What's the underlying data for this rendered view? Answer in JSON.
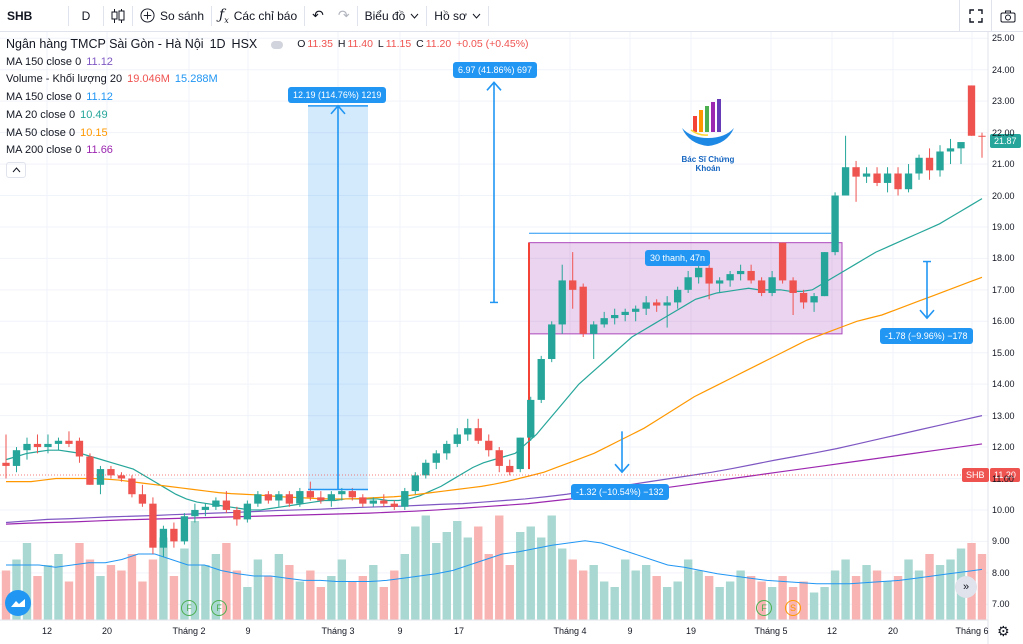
{
  "toolbar": {
    "symbol": "SHB",
    "interval": "D",
    "compare_label": "So sánh",
    "indicators_label": "Các chỉ báo",
    "chart_type_label": "Biểu đồ",
    "profile_label": "Hồ sơ"
  },
  "legend": {
    "title": "Ngân hàng TMCP Sài Gòn - Hà Nội",
    "timeframe": "1D",
    "exchange": "HSX",
    "ohlc": {
      "o_label": "O",
      "o": "11.35",
      "h_label": "H",
      "h": "11.40",
      "l_label": "L",
      "l": "11.15",
      "c_label": "C",
      "c": "11.20",
      "change": "+0.05 (+0.45%)"
    },
    "rows": [
      {
        "name": "MA 150 close 0",
        "value": "11.12",
        "color": "#7e57c2"
      },
      {
        "name": "Volume - Khối lượng 20",
        "value": "19.046M",
        "value2": "15.288M",
        "color": "#ef5350",
        "color2": "#2196f3"
      },
      {
        "name": "MA 150 close 0",
        "value": "11.12",
        "color": "#2196f3"
      },
      {
        "name": "MA 20 close 0",
        "value": "10.49",
        "color": "#26a69a"
      },
      {
        "name": "MA 50 close 0",
        "value": "10.15",
        "color": "#ff9800"
      },
      {
        "name": "MA 200 close 0",
        "value": "11.66",
        "color": "#9c27b0"
      }
    ]
  },
  "annotations": {
    "range1": "12.19 (114.76%) 1219",
    "range2": "6.97 (41.86%) 697",
    "range3": "30 thanh, 47n",
    "range4": "-1.78 (−9.96%) −178",
    "range5": "-1.32 (−10.54%) −132",
    "logo_text": "Bác Sĩ Chứng Khoán"
  },
  "price_tags": {
    "current": "21.87",
    "shb_label": "SHB",
    "shb_price": "11.20"
  },
  "event_markers": [
    "F",
    "F",
    "F",
    "S"
  ],
  "colors": {
    "up": "#26a69a",
    "down": "#ef5350",
    "ma20": "#26a69a",
    "ma50": "#ff9800",
    "ma150": "#7e57c2",
    "ma200": "#9c27b0"
  },
  "chart_data": {
    "type": "candlestick",
    "y_axis": {
      "min": 6.5,
      "max": 25.2,
      "ticks": [
        "25.00",
        "24.00",
        "23.00",
        "22.00",
        "21.00",
        "20.00",
        "19.00",
        "18.00",
        "17.00",
        "16.00",
        "15.00",
        "14.00",
        "13.00",
        "12.00",
        "11.00",
        "10.00",
        "9.00",
        "8.00",
        "7.00"
      ]
    },
    "x_ticks": [
      "12",
      "20",
      "Tháng 2",
      "9",
      "Tháng 3",
      "9",
      "17",
      "Tháng 4",
      "9",
      "19",
      "Tháng 5",
      "12",
      "20",
      "Tháng 6"
    ],
    "candles": [
      {
        "o": 11.5,
        "h": 12.4,
        "l": 11.0,
        "c": 11.4
      },
      {
        "o": 11.4,
        "h": 12.0,
        "l": 11.2,
        "c": 11.9
      },
      {
        "o": 11.9,
        "h": 12.3,
        "l": 11.6,
        "c": 12.1
      },
      {
        "o": 12.1,
        "h": 12.4,
        "l": 11.8,
        "c": 12.0
      },
      {
        "o": 12.0,
        "h": 12.4,
        "l": 11.8,
        "c": 12.1
      },
      {
        "o": 12.1,
        "h": 12.3,
        "l": 11.9,
        "c": 12.2
      },
      {
        "o": 12.2,
        "h": 12.5,
        "l": 12.0,
        "c": 12.1
      },
      {
        "o": 12.2,
        "h": 12.3,
        "l": 11.5,
        "c": 11.7
      },
      {
        "o": 11.7,
        "h": 11.8,
        "l": 10.8,
        "c": 10.8
      },
      {
        "o": 10.8,
        "h": 11.4,
        "l": 10.5,
        "c": 11.3
      },
      {
        "o": 11.3,
        "h": 11.4,
        "l": 11.0,
        "c": 11.1
      },
      {
        "o": 11.1,
        "h": 11.2,
        "l": 10.9,
        "c": 11.0
      },
      {
        "o": 11.0,
        "h": 11.1,
        "l": 10.4,
        "c": 10.5
      },
      {
        "o": 10.5,
        "h": 10.8,
        "l": 10.1,
        "c": 10.2
      },
      {
        "o": 10.2,
        "h": 10.4,
        "l": 8.6,
        "c": 8.8
      },
      {
        "o": 8.8,
        "h": 9.5,
        "l": 8.5,
        "c": 9.4
      },
      {
        "o": 9.4,
        "h": 9.6,
        "l": 8.8,
        "c": 9.0
      },
      {
        "o": 9.0,
        "h": 9.9,
        "l": 8.9,
        "c": 9.8
      },
      {
        "o": 9.8,
        "h": 10.2,
        "l": 9.6,
        "c": 10.0
      },
      {
        "o": 10.0,
        "h": 10.2,
        "l": 9.8,
        "c": 10.1
      },
      {
        "o": 10.1,
        "h": 10.4,
        "l": 10.0,
        "c": 10.3
      },
      {
        "o": 10.3,
        "h": 10.6,
        "l": 9.9,
        "c": 10.0
      },
      {
        "o": 10.0,
        "h": 10.1,
        "l": 9.5,
        "c": 9.7
      },
      {
        "o": 9.7,
        "h": 10.3,
        "l": 9.6,
        "c": 10.2
      },
      {
        "o": 10.2,
        "h": 10.6,
        "l": 10.1,
        "c": 10.5
      },
      {
        "o": 10.5,
        "h": 10.6,
        "l": 10.2,
        "c": 10.3
      },
      {
        "o": 10.3,
        "h": 10.6,
        "l": 10.1,
        "c": 10.5
      },
      {
        "o": 10.5,
        "h": 10.6,
        "l": 10.1,
        "c": 10.2
      },
      {
        "o": 10.2,
        "h": 10.7,
        "l": 10.1,
        "c": 10.6
      },
      {
        "o": 10.6,
        "h": 10.9,
        "l": 10.3,
        "c": 10.4
      },
      {
        "o": 10.4,
        "h": 10.6,
        "l": 10.2,
        "c": 10.3
      },
      {
        "o": 10.3,
        "h": 10.6,
        "l": 10.1,
        "c": 10.5
      },
      {
        "o": 10.5,
        "h": 10.7,
        "l": 10.3,
        "c": 10.6
      },
      {
        "o": 10.6,
        "h": 10.7,
        "l": 10.3,
        "c": 10.4
      },
      {
        "o": 10.4,
        "h": 10.5,
        "l": 10.1,
        "c": 10.2
      },
      {
        "o": 10.2,
        "h": 10.4,
        "l": 10.1,
        "c": 10.3
      },
      {
        "o": 10.3,
        "h": 10.5,
        "l": 10.1,
        "c": 10.2
      },
      {
        "o": 10.2,
        "h": 10.3,
        "l": 10.0,
        "c": 10.1
      },
      {
        "o": 10.1,
        "h": 10.7,
        "l": 10.0,
        "c": 10.6
      },
      {
        "o": 10.6,
        "h": 11.2,
        "l": 10.5,
        "c": 11.1
      },
      {
        "o": 11.1,
        "h": 11.6,
        "l": 11.0,
        "c": 11.5
      },
      {
        "o": 11.5,
        "h": 11.9,
        "l": 11.3,
        "c": 11.8
      },
      {
        "o": 11.8,
        "h": 12.2,
        "l": 11.6,
        "c": 12.1
      },
      {
        "o": 12.1,
        "h": 12.6,
        "l": 12.0,
        "c": 12.4
      },
      {
        "o": 12.4,
        "h": 12.9,
        "l": 12.2,
        "c": 12.6
      },
      {
        "o": 12.6,
        "h": 12.9,
        "l": 12.1,
        "c": 12.2
      },
      {
        "o": 12.2,
        "h": 12.4,
        "l": 11.7,
        "c": 11.9
      },
      {
        "o": 11.9,
        "h": 12.0,
        "l": 11.2,
        "c": 11.4
      },
      {
        "o": 11.4,
        "h": 11.6,
        "l": 11.1,
        "c": 11.2
      },
      {
        "o": 11.3,
        "h": 12.3,
        "l": 11.2,
        "c": 12.3
      },
      {
        "o": 12.3,
        "h": 13.6,
        "l": 12.2,
        "c": 13.5
      },
      {
        "o": 13.5,
        "h": 14.9,
        "l": 13.4,
        "c": 14.8
      },
      {
        "o": 14.8,
        "h": 16.0,
        "l": 14.7,
        "c": 15.9
      },
      {
        "o": 15.9,
        "h": 17.8,
        "l": 15.6,
        "c": 17.3
      },
      {
        "o": 17.3,
        "h": 18.2,
        "l": 16.4,
        "c": 17.0
      },
      {
        "o": 17.1,
        "h": 17.2,
        "l": 15.5,
        "c": 15.6
      },
      {
        "o": 15.6,
        "h": 16.0,
        "l": 14.8,
        "c": 15.9
      },
      {
        "o": 15.9,
        "h": 16.3,
        "l": 15.8,
        "c": 16.1
      },
      {
        "o": 16.1,
        "h": 16.4,
        "l": 15.9,
        "c": 16.2
      },
      {
        "o": 16.2,
        "h": 16.4,
        "l": 16.0,
        "c": 16.3
      },
      {
        "o": 16.3,
        "h": 16.5,
        "l": 16.0,
        "c": 16.4
      },
      {
        "o": 16.4,
        "h": 16.8,
        "l": 16.2,
        "c": 16.6
      },
      {
        "o": 16.6,
        "h": 16.7,
        "l": 16.3,
        "c": 16.5
      },
      {
        "o": 16.5,
        "h": 16.8,
        "l": 15.8,
        "c": 16.6
      },
      {
        "o": 16.6,
        "h": 17.1,
        "l": 16.4,
        "c": 17.0
      },
      {
        "o": 17.0,
        "h": 17.6,
        "l": 16.9,
        "c": 17.4
      },
      {
        "o": 17.4,
        "h": 17.9,
        "l": 17.2,
        "c": 17.7
      },
      {
        "o": 17.7,
        "h": 17.8,
        "l": 16.7,
        "c": 17.2
      },
      {
        "o": 17.2,
        "h": 17.4,
        "l": 16.9,
        "c": 17.3
      },
      {
        "o": 17.3,
        "h": 17.6,
        "l": 17.1,
        "c": 17.5
      },
      {
        "o": 17.5,
        "h": 17.8,
        "l": 17.3,
        "c": 17.6
      },
      {
        "o": 17.6,
        "h": 17.8,
        "l": 17.2,
        "c": 17.3
      },
      {
        "o": 17.3,
        "h": 17.4,
        "l": 16.8,
        "c": 16.9
      },
      {
        "o": 16.9,
        "h": 17.6,
        "l": 16.8,
        "c": 17.4
      },
      {
        "o": 18.5,
        "h": 18.5,
        "l": 17.2,
        "c": 17.3
      },
      {
        "o": 17.3,
        "h": 17.4,
        "l": 16.2,
        "c": 16.9
      },
      {
        "o": 16.9,
        "h": 17.0,
        "l": 16.4,
        "c": 16.6
      },
      {
        "o": 16.6,
        "h": 16.9,
        "l": 16.3,
        "c": 16.8
      },
      {
        "o": 16.8,
        "h": 18.2,
        "l": 16.8,
        "c": 18.2
      },
      {
        "o": 18.2,
        "h": 20.1,
        "l": 18.1,
        "c": 20.0
      },
      {
        "o": 20.0,
        "h": 21.9,
        "l": 20.0,
        "c": 20.9
      },
      {
        "o": 20.9,
        "h": 21.1,
        "l": 19.8,
        "c": 20.6
      },
      {
        "o": 20.6,
        "h": 20.9,
        "l": 20.4,
        "c": 20.7
      },
      {
        "o": 20.7,
        "h": 20.9,
        "l": 20.3,
        "c": 20.4
      },
      {
        "o": 20.4,
        "h": 20.9,
        "l": 20.1,
        "c": 20.7
      },
      {
        "o": 20.7,
        "h": 20.9,
        "l": 20.0,
        "c": 20.2
      },
      {
        "o": 20.2,
        "h": 21.0,
        "l": 20.1,
        "c": 20.7
      },
      {
        "o": 20.7,
        "h": 21.3,
        "l": 20.5,
        "c": 21.2
      },
      {
        "o": 21.2,
        "h": 21.5,
        "l": 20.5,
        "c": 20.8
      },
      {
        "o": 20.8,
        "h": 21.6,
        "l": 20.6,
        "c": 21.4
      },
      {
        "o": 21.4,
        "h": 21.8,
        "l": 21.0,
        "c": 21.5
      },
      {
        "o": 21.5,
        "h": 21.6,
        "l": 21.0,
        "c": 21.7
      },
      {
        "o": 23.5,
        "h": 23.5,
        "l": 21.9,
        "c": 21.9
      },
      {
        "o": 21.9,
        "h": 22.0,
        "l": 21.2,
        "c": 21.87
      }
    ],
    "volume_levels": [
      0.45,
      0.55,
      0.7,
      0.4,
      0.5,
      0.6,
      0.35,
      0.7,
      0.55,
      0.4,
      0.5,
      0.45,
      0.6,
      0.35,
      0.55,
      0.75,
      0.4,
      0.65,
      0.9,
      0.5,
      0.6,
      0.7,
      0.45,
      0.3,
      0.55,
      0.4,
      0.6,
      0.5,
      0.35,
      0.45,
      0.3,
      0.4,
      0.55,
      0.35,
      0.4,
      0.5,
      0.3,
      0.45,
      0.6,
      0.85,
      0.95,
      0.7,
      0.8,
      0.9,
      0.75,
      0.85,
      0.6,
      0.95,
      0.5,
      0.8,
      0.85,
      0.75,
      0.95,
      0.65,
      0.55,
      0.45,
      0.5,
      0.35,
      0.3,
      0.55,
      0.45,
      0.5,
      0.4,
      0.3,
      0.35,
      0.55,
      0.45,
      0.4,
      0.3,
      0.35,
      0.45,
      0.4,
      0.35,
      0.3,
      0.4,
      0.3,
      0.35,
      0.25,
      0.3,
      0.45,
      0.55,
      0.4,
      0.5,
      0.45,
      0.35,
      0.4,
      0.55,
      0.45,
      0.6,
      0.5,
      0.55,
      0.65,
      0.7,
      0.6
    ],
    "volume_ma_levels": [
      0.5,
      0.5,
      0.5,
      0.48,
      0.5,
      0.52,
      0.52,
      0.55,
      0.6,
      0.6,
      0.55,
      0.5,
      0.5,
      0.45,
      0.42,
      0.4,
      0.4,
      0.38,
      0.36,
      0.36,
      0.35,
      0.35,
      0.35,
      0.36,
      0.38,
      0.4,
      0.42,
      0.45,
      0.5,
      0.55,
      0.6,
      0.62,
      0.65,
      0.68,
      0.7,
      0.72,
      0.7,
      0.65,
      0.6,
      0.55,
      0.5,
      0.48,
      0.45,
      0.42,
      0.4,
      0.38,
      0.36,
      0.35,
      0.34,
      0.33,
      0.33,
      0.33,
      0.34,
      0.35,
      0.36,
      0.38,
      0.4,
      0.42,
      0.44,
      0.46
    ],
    "ma_series": [
      {
        "name": "MA 20",
        "values": [
          11.6,
          11.7,
          11.8,
          11.85,
          11.9,
          11.9,
          11.85,
          11.8,
          11.7,
          11.6,
          11.5,
          11.4,
          11.3,
          11.1,
          10.9,
          10.7,
          10.5,
          10.35,
          10.25,
          10.2,
          10.15,
          10.1,
          10.05,
          10.0,
          10.0,
          10.05,
          10.1,
          10.15,
          10.2,
          10.25,
          10.3,
          10.3,
          10.35,
          10.35,
          10.35,
          10.35,
          10.3,
          10.3,
          10.35,
          10.45,
          10.6,
          10.75,
          10.95,
          11.15,
          11.35,
          11.5,
          11.6,
          11.7,
          11.8,
          12.1,
          12.4,
          12.8,
          13.2,
          13.6,
          14.0,
          14.3,
          14.6,
          14.9,
          15.2,
          15.5,
          15.7,
          15.9,
          16.1,
          16.3,
          16.5,
          16.7,
          16.8,
          16.9,
          16.95,
          17.0,
          17.05,
          17.0,
          17.0,
          17.0,
          16.95,
          16.95,
          17.0,
          17.2,
          17.4,
          17.6,
          17.8,
          18.0,
          18.2,
          18.35,
          18.5,
          18.65,
          18.8,
          18.95,
          19.1,
          19.3,
          19.5,
          19.7,
          19.9
        ]
      },
      {
        "name": "MA 50",
        "values": [
          10.9,
          10.9,
          10.9,
          10.95,
          11.0,
          11.0,
          11.0,
          11.0,
          10.98,
          10.95,
          10.9,
          10.85,
          10.8,
          10.75,
          10.7,
          10.65,
          10.6,
          10.55,
          10.52,
          10.5,
          10.48,
          10.45,
          10.42,
          10.4,
          10.38,
          10.36,
          10.35,
          10.35,
          10.36,
          10.38,
          10.4,
          10.42,
          10.45,
          10.5,
          10.55,
          10.6,
          10.65,
          10.7,
          10.75,
          10.82,
          10.9,
          11.0,
          11.1,
          11.2,
          11.35,
          11.5,
          11.65,
          11.8,
          12.0,
          12.2,
          12.4,
          12.6,
          12.85,
          13.1,
          13.35,
          13.6,
          13.8,
          14.0,
          14.2,
          14.4,
          14.6,
          14.8,
          15.0,
          15.2,
          15.4,
          15.55,
          15.7,
          15.85,
          16.0,
          16.1,
          16.2,
          16.35,
          16.5,
          16.65,
          16.8,
          16.95,
          17.1,
          17.25,
          17.4
        ]
      },
      {
        "name": "MA 150",
        "values": [
          9.6,
          9.65,
          9.7,
          9.72,
          9.75,
          9.78,
          9.8,
          9.82,
          9.85,
          9.87,
          9.9,
          9.92,
          9.95,
          9.98,
          10.0,
          10.02,
          10.05,
          10.08,
          10.1,
          10.12,
          10.15,
          10.18,
          10.2,
          10.25,
          10.3,
          10.35,
          10.42,
          10.5,
          10.6,
          10.7,
          10.8,
          10.9,
          11.0,
          11.1,
          11.2,
          11.32,
          11.45,
          11.58,
          11.7,
          11.82,
          11.95,
          12.1,
          12.25,
          12.4,
          12.55,
          12.7,
          12.85,
          13.0
        ]
      },
      {
        "name": "MA 200",
        "values": [
          9.55,
          9.58,
          9.6,
          9.62,
          9.65,
          9.68,
          9.7,
          9.72,
          9.74,
          9.76,
          9.78,
          9.8,
          9.82,
          9.84,
          9.86,
          9.88,
          9.9,
          9.93,
          9.96,
          10.0,
          10.05,
          10.1,
          10.15,
          10.2,
          10.28,
          10.36,
          10.44,
          10.52,
          10.6,
          10.7,
          10.8,
          10.9,
          11.0,
          11.1,
          11.2,
          11.3,
          11.4,
          11.5,
          11.6,
          11.7,
          11.8,
          11.9,
          12.0,
          12.1
        ]
      }
    ]
  }
}
